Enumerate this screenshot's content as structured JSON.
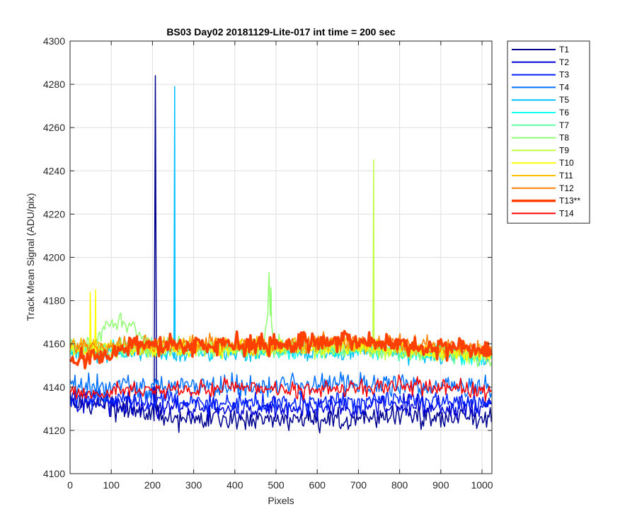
{
  "chart_data": {
    "type": "line",
    "title": "BS03 Day02 20181129-Lite-017 int time = 200 sec",
    "xlabel": "Pixels",
    "ylabel": "Track Mean Signal (ADU/pix)",
    "xlim": [
      0,
      1024
    ],
    "ylim": [
      4100,
      4300
    ],
    "xticks": [
      0,
      100,
      200,
      300,
      400,
      500,
      600,
      700,
      800,
      900,
      1000
    ],
    "yticks": [
      4100,
      4120,
      4140,
      4160,
      4180,
      4200,
      4220,
      4240,
      4260,
      4280,
      4300
    ],
    "grid": true,
    "legend_position": "outside-top-right",
    "series": [
      {
        "name": "T1",
        "color": "#00008f",
        "base": [
          [
            0,
            4134
          ],
          [
            100,
            4131
          ],
          [
            200,
            4127
          ],
          [
            300,
            4125
          ],
          [
            400,
            4125
          ],
          [
            500,
            4125
          ],
          [
            600,
            4124
          ],
          [
            700,
            4125
          ],
          [
            800,
            4127
          ],
          [
            900,
            4126
          ],
          [
            1024,
            4127
          ]
        ],
        "noise": 2.5,
        "spikes": [
          [
            207,
            4284
          ]
        ]
      },
      {
        "name": "T2",
        "color": "#0000d5",
        "base": [
          [
            0,
            4133
          ],
          [
            100,
            4132
          ],
          [
            200,
            4131
          ],
          [
            300,
            4130
          ],
          [
            400,
            4130
          ],
          [
            500,
            4130
          ],
          [
            600,
            4130
          ],
          [
            700,
            4130
          ],
          [
            800,
            4131
          ],
          [
            900,
            4130
          ],
          [
            1024,
            4131
          ]
        ],
        "noise": 2.5,
        "spikes": [
          [
            206,
            4140
          ]
        ]
      },
      {
        "name": "T3",
        "color": "#0020ff",
        "base": [
          [
            0,
            4135
          ],
          [
            100,
            4134
          ],
          [
            200,
            4134
          ],
          [
            300,
            4133
          ],
          [
            400,
            4133
          ],
          [
            500,
            4133
          ],
          [
            600,
            4133
          ],
          [
            700,
            4133
          ],
          [
            800,
            4134
          ],
          [
            900,
            4133
          ],
          [
            1024,
            4133
          ]
        ],
        "noise": 2.5,
        "spikes": []
      },
      {
        "name": "T4",
        "color": "#0070ff",
        "base": [
          [
            0,
            4140
          ],
          [
            100,
            4140
          ],
          [
            200,
            4140
          ],
          [
            300,
            4140
          ],
          [
            400,
            4140
          ],
          [
            500,
            4141
          ],
          [
            600,
            4141
          ],
          [
            700,
            4141
          ],
          [
            800,
            4141
          ],
          [
            900,
            4140
          ],
          [
            1024,
            4140
          ]
        ],
        "noise": 2.5,
        "spikes": []
      },
      {
        "name": "T5",
        "color": "#00bfff",
        "base": [
          [
            0,
            4156
          ],
          [
            100,
            4156
          ],
          [
            200,
            4156
          ],
          [
            300,
            4156
          ],
          [
            400,
            4156
          ],
          [
            500,
            4157
          ],
          [
            600,
            4157
          ],
          [
            700,
            4157
          ],
          [
            800,
            4156
          ],
          [
            900,
            4155
          ],
          [
            1024,
            4154
          ]
        ],
        "noise": 2,
        "spikes": [
          [
            254,
            4279
          ]
        ]
      },
      {
        "name": "T6",
        "color": "#10ffef",
        "base": [
          [
            0,
            4157
          ],
          [
            100,
            4157
          ],
          [
            200,
            4157
          ],
          [
            300,
            4157
          ],
          [
            400,
            4157
          ],
          [
            500,
            4157
          ],
          [
            600,
            4157
          ],
          [
            700,
            4157
          ],
          [
            800,
            4156
          ],
          [
            900,
            4155
          ],
          [
            1024,
            4155
          ]
        ],
        "noise": 2,
        "spikes": []
      },
      {
        "name": "T7",
        "color": "#60ffa0",
        "base": [
          [
            0,
            4158
          ],
          [
            100,
            4158
          ],
          [
            200,
            4158
          ],
          [
            300,
            4158
          ],
          [
            400,
            4158
          ],
          [
            500,
            4158
          ],
          [
            600,
            4158
          ],
          [
            700,
            4158
          ],
          [
            800,
            4157
          ],
          [
            900,
            4156
          ],
          [
            1024,
            4155
          ]
        ],
        "noise": 2,
        "spikes": []
      },
      {
        "name": "T8",
        "color": "#8fff70",
        "base": [
          [
            0,
            4159
          ],
          [
            60,
            4160
          ],
          [
            80,
            4168
          ],
          [
            120,
            4172
          ],
          [
            160,
            4166
          ],
          [
            200,
            4160
          ],
          [
            300,
            4159
          ],
          [
            400,
            4159
          ],
          [
            470,
            4160
          ],
          [
            480,
            4175
          ],
          [
            490,
            4170
          ],
          [
            500,
            4160
          ],
          [
            600,
            4159
          ],
          [
            700,
            4158
          ],
          [
            800,
            4157
          ],
          [
            900,
            4155
          ],
          [
            1024,
            4153
          ]
        ],
        "noise": 2,
        "spikes": [
          [
            483,
            4193
          ],
          [
            488,
            4186
          ]
        ]
      },
      {
        "name": "T9",
        "color": "#bfff40",
        "base": [
          [
            0,
            4157
          ],
          [
            100,
            4157
          ],
          [
            200,
            4157
          ],
          [
            300,
            4158
          ],
          [
            400,
            4158
          ],
          [
            500,
            4158
          ],
          [
            600,
            4158
          ],
          [
            700,
            4158
          ],
          [
            800,
            4157
          ],
          [
            900,
            4156
          ],
          [
            1024,
            4155
          ]
        ],
        "noise": 2,
        "spikes": [
          [
            737,
            4245
          ]
        ]
      },
      {
        "name": "T10",
        "color": "#ffff00",
        "base": [
          [
            0,
            4158
          ],
          [
            100,
            4158
          ],
          [
            200,
            4158
          ],
          [
            300,
            4158
          ],
          [
            400,
            4158
          ],
          [
            500,
            4158
          ],
          [
            600,
            4158
          ],
          [
            700,
            4158
          ],
          [
            800,
            4157
          ],
          [
            900,
            4156
          ],
          [
            1024,
            4155
          ]
        ],
        "noise": 2,
        "spikes": [
          [
            49,
            4184
          ],
          [
            62,
            4185
          ]
        ]
      },
      {
        "name": "T11",
        "color": "#ffbf00",
        "base": [
          [
            0,
            4159
          ],
          [
            100,
            4159
          ],
          [
            200,
            4159
          ],
          [
            300,
            4159
          ],
          [
            400,
            4159
          ],
          [
            500,
            4159
          ],
          [
            600,
            4160
          ],
          [
            700,
            4160
          ],
          [
            800,
            4159
          ],
          [
            900,
            4158
          ],
          [
            1024,
            4157
          ]
        ],
        "noise": 2,
        "spikes": []
      },
      {
        "name": "T12",
        "color": "#ff8000",
        "base": [
          [
            0,
            4159
          ],
          [
            100,
            4159
          ],
          [
            200,
            4160
          ],
          [
            300,
            4160
          ],
          [
            400,
            4160
          ],
          [
            500,
            4160
          ],
          [
            600,
            4161
          ],
          [
            700,
            4161
          ],
          [
            800,
            4160
          ],
          [
            900,
            4159
          ],
          [
            1024,
            4158
          ]
        ],
        "noise": 2,
        "spikes": []
      },
      {
        "name": "T13**",
        "color": "#ff4000",
        "width": 3.5,
        "base": [
          [
            0,
            4156
          ],
          [
            40,
            4153
          ],
          [
            100,
            4155
          ],
          [
            150,
            4158
          ],
          [
            200,
            4159
          ],
          [
            300,
            4160
          ],
          [
            400,
            4160
          ],
          [
            500,
            4160
          ],
          [
            600,
            4161
          ],
          [
            700,
            4161
          ],
          [
            800,
            4160
          ],
          [
            900,
            4158
          ],
          [
            1024,
            4157
          ]
        ],
        "noise": 2.5,
        "spikes": []
      },
      {
        "name": "T14",
        "color": "#ff0000",
        "base": [
          [
            0,
            4137
          ],
          [
            100,
            4138
          ],
          [
            200,
            4139
          ],
          [
            300,
            4139
          ],
          [
            400,
            4140
          ],
          [
            500,
            4139
          ],
          [
            600,
            4139
          ],
          [
            700,
            4140
          ],
          [
            800,
            4141
          ],
          [
            900,
            4140
          ],
          [
            1024,
            4138
          ]
        ],
        "noise": 2,
        "spikes": []
      }
    ]
  }
}
